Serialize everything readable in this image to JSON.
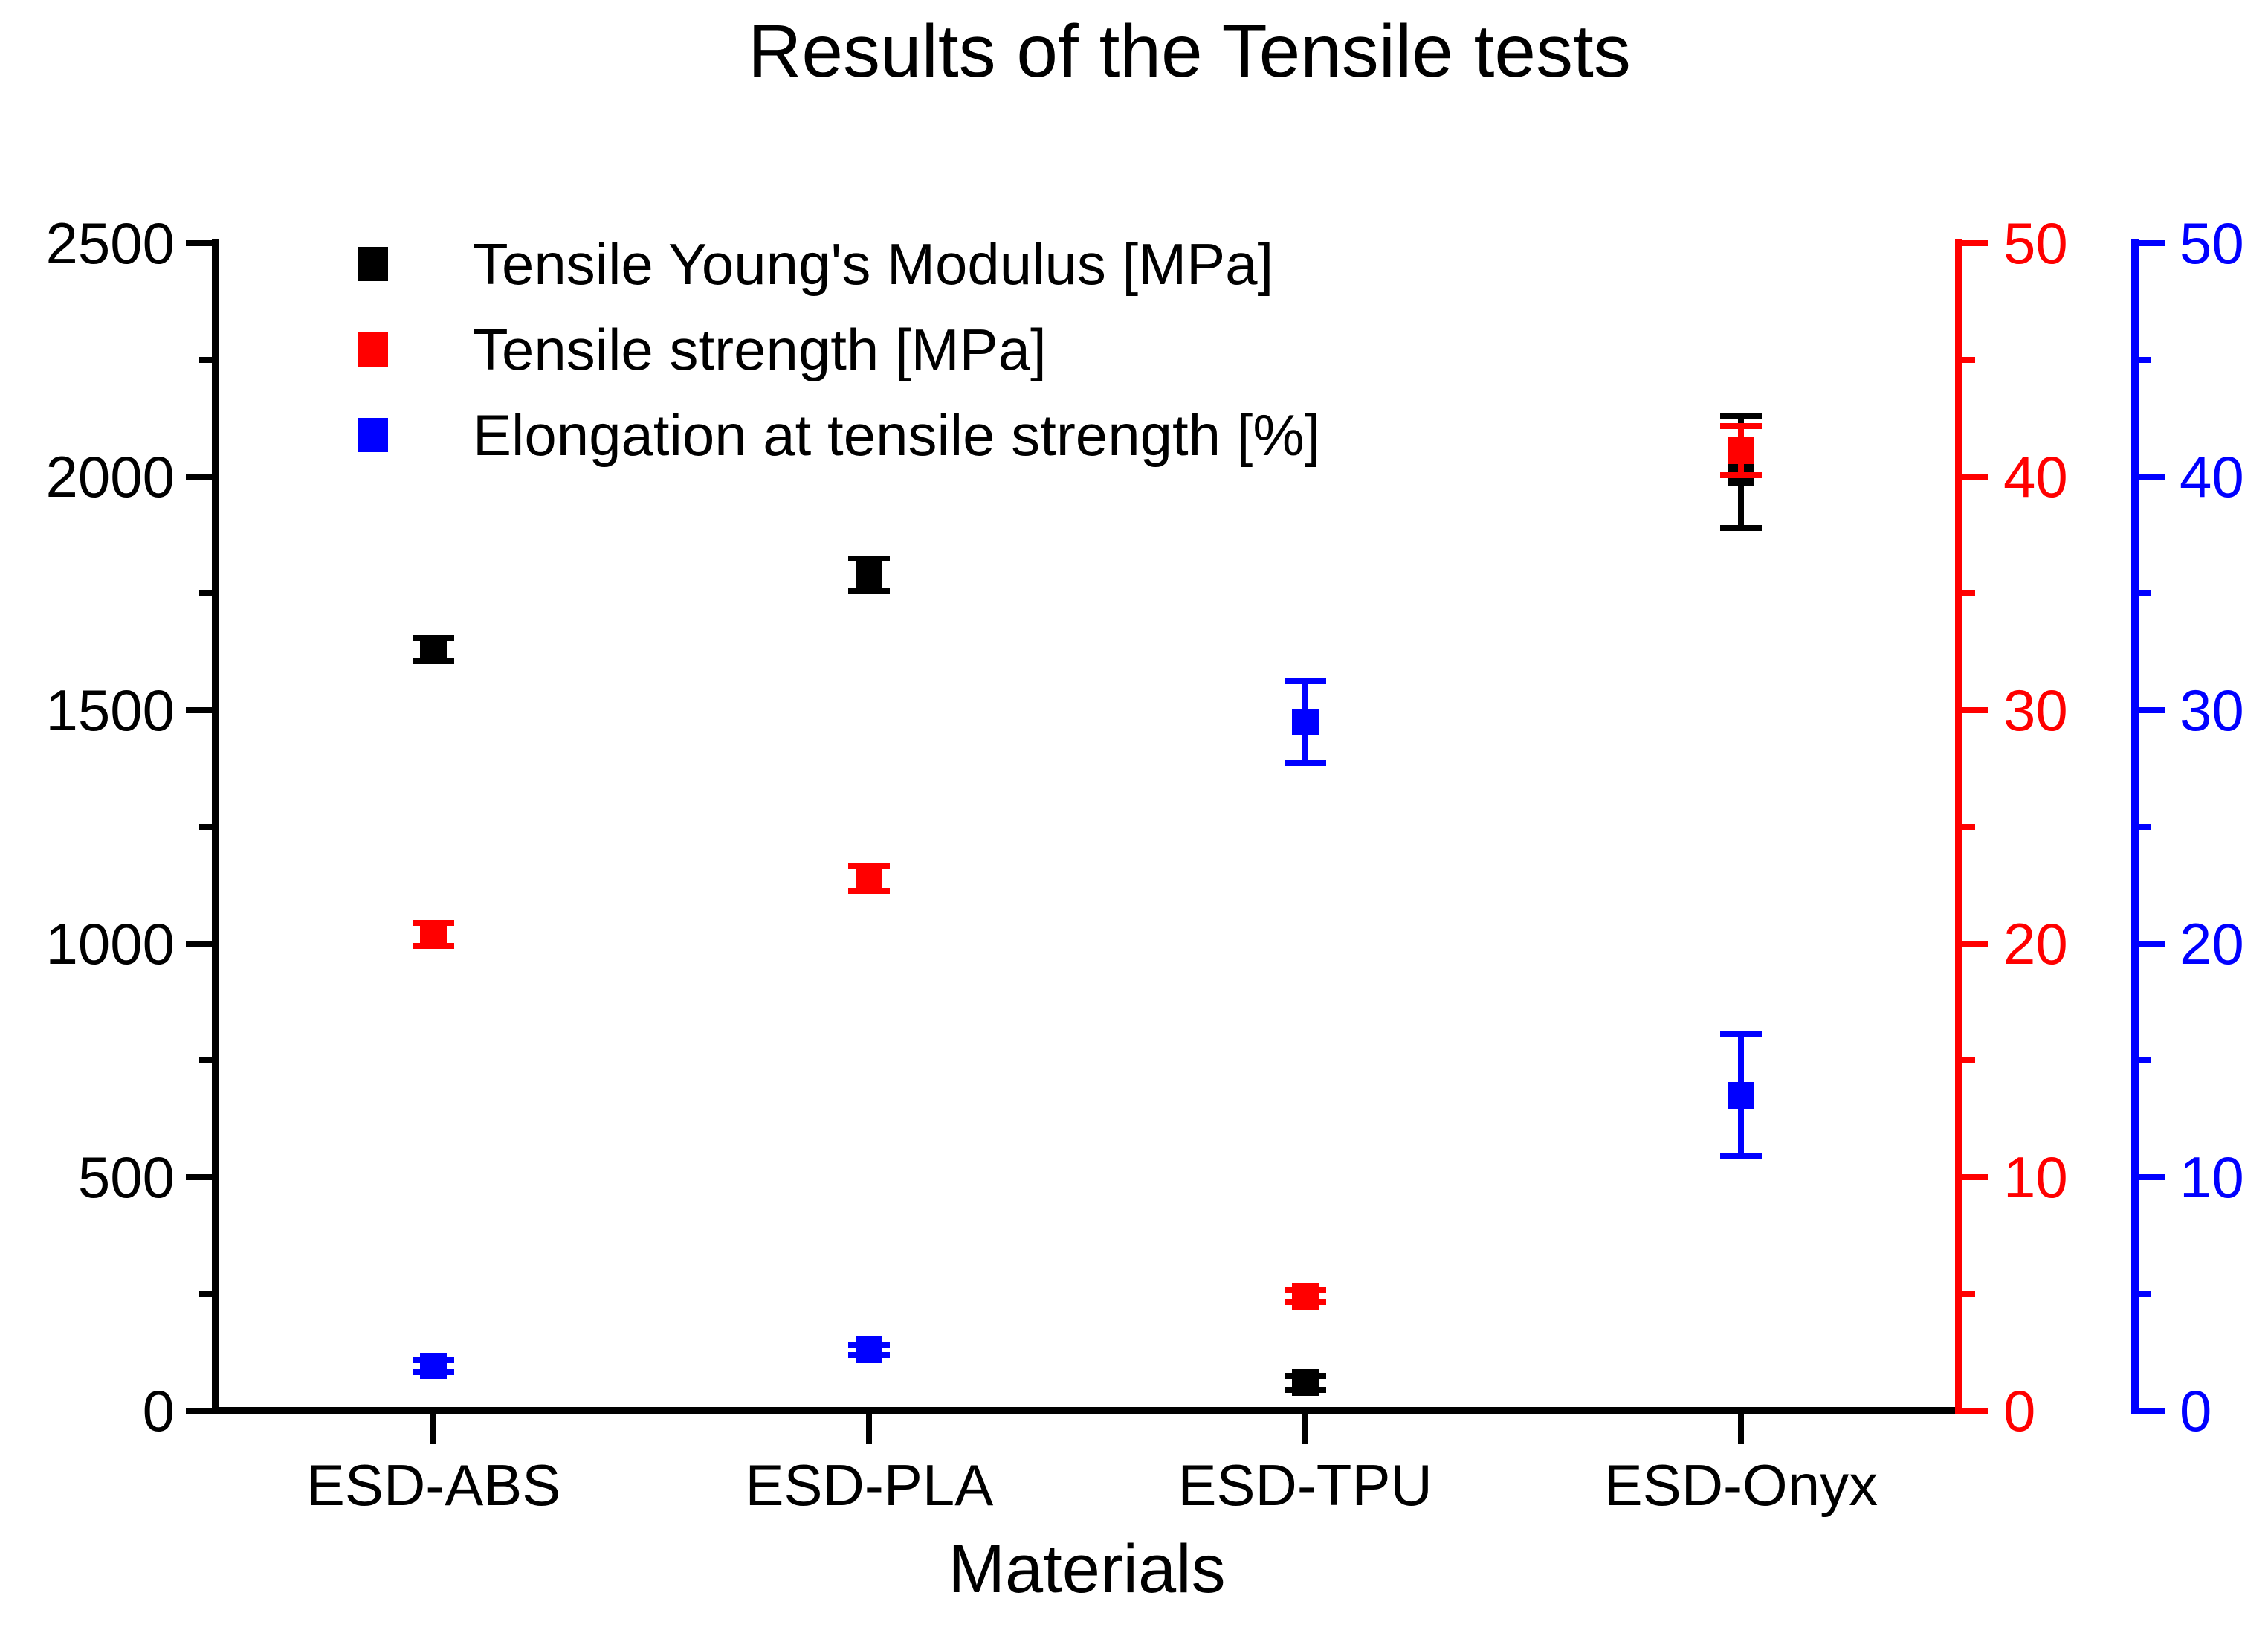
{
  "chart_data": {
    "type": "scatter",
    "title": "Results of the Tensile tests",
    "xlabel": "Materials",
    "categories": [
      "ESD-ABS",
      "ESD-PLA",
      "ESD-TPU",
      "ESD-Onyx"
    ],
    "series": [
      {
        "name": "Tensile Young's Modulus [MPa]",
        "color": "#000000",
        "axis": "left",
        "values": [
          1630,
          1790,
          60,
          2010
        ],
        "errors": [
          25,
          35,
          15,
          120
        ]
      },
      {
        "name": "Tensile strength [MPa]",
        "color": "#ff0000",
        "axis": "right",
        "values": [
          20.4,
          22.8,
          4.9,
          41.1
        ],
        "errors": [
          0.5,
          0.55,
          0.25,
          1.05
        ]
      },
      {
        "name": "Elongation at tensile strength [%]",
        "color": "#0000ff",
        "axis": "right",
        "values": [
          1.9,
          2.6,
          29.5,
          13.5
        ],
        "errors": [
          0.25,
          0.2,
          1.75,
          2.6
        ]
      }
    ],
    "axes": {
      "left": {
        "min": 0,
        "max": 2500,
        "major": 500,
        "minor": 250,
        "color": "#000000",
        "ticks": [
          "0",
          "500",
          "1000",
          "1500",
          "2000",
          "2500"
        ]
      },
      "right_red": {
        "min": 0,
        "max": 50,
        "major": 10,
        "minor": 5,
        "color": "#ff0000",
        "ticks": [
          "0",
          "10",
          "20",
          "30",
          "40",
          "50"
        ]
      },
      "right_blue": {
        "min": 0,
        "max": 50,
        "major": 10,
        "minor": 5,
        "color": "#0000ff",
        "ticks": [
          "0",
          "10",
          "20",
          "30",
          "40",
          "50"
        ]
      }
    },
    "legend_position": "top-left-inside",
    "grid": false
  }
}
